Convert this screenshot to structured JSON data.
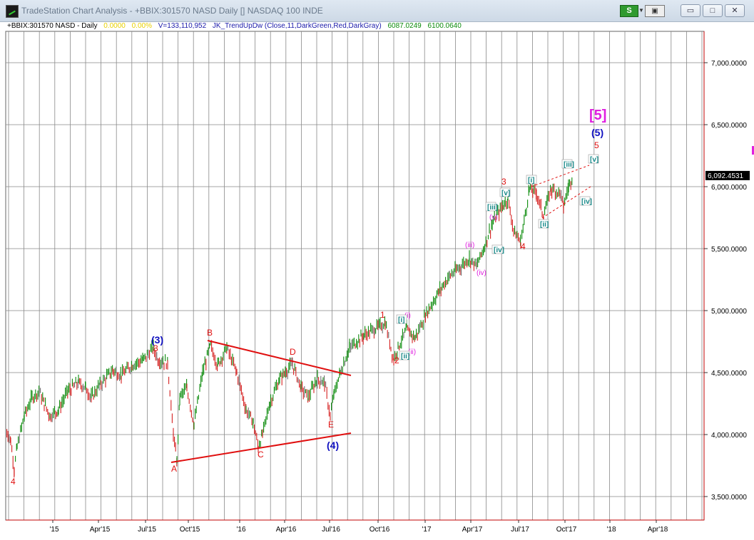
{
  "window": {
    "title": "TradeStation Chart Analysis - +BBIX:301570 NASD Daily [] NASDAQ 100 INDE",
    "s_button": "S",
    "link_button": "▣",
    "min_glyph": "▭",
    "max_glyph": "□",
    "close_glyph": "✕"
  },
  "info_bar": {
    "symbol": "+BBIX:301570 NASD - Daily",
    "change": "0.0000",
    "pct": "0.00%",
    "volume": "V=133,110,952",
    "indicator": "JK_TrendUpDw (Close,11,DarkGreen,Red,DarkGray)",
    "val1": "6087.0249",
    "val2": "6100.0640"
  },
  "colors": {
    "up": "#0a8a0a",
    "down": "#d62020",
    "flat": "#707070",
    "grid": "#888888",
    "axis": "#c00000",
    "wave_red": "#e01010",
    "wave_blue": "#1010c0",
    "wave_magenta": "#e020e0",
    "wave_teal": "#1a8a8a"
  },
  "y_axis": {
    "labels": [
      "7,000.0000",
      "6,500.0000",
      "6,000.0000",
      "5,500.0000",
      "5,000.0000",
      "4,500.0000",
      "4,000.0000",
      "3,500.0000"
    ],
    "current_price": "6,092.4531"
  },
  "x_axis": {
    "labels": [
      "'15",
      "Apr'15",
      "Jul'15",
      "Oct'15",
      "'16",
      "Apr'16",
      "Jul'16",
      "Oct'16",
      "'17",
      "Apr'17",
      "Jul'17",
      "Oct'17",
      "'18",
      "Apr'18"
    ]
  },
  "chart_data": {
    "type": "line",
    "series": [
      {
        "name": "",
        "values": []
      }
    ],
    "ylim": [
      3300,
      7200
    ],
    "trend_lines": [
      {
        "p1": [
          "Oct'15",
          4750
        ],
        "p2": [
          "Jul'16",
          4480
        ]
      },
      {
        "p1": [
          "Aug'15",
          3780
        ],
        "p2": [
          "Jul'16",
          4000
        ]
      }
    ]
  },
  "waves": {
    "red": [
      "4",
      "3",
      "A",
      "B",
      "C",
      "D",
      "E",
      "1",
      "2",
      "3",
      "4",
      "5"
    ],
    "blue": [
      "(3)",
      "(4)",
      "(5)"
    ],
    "magenta": [
      "[5]",
      "(i)",
      "(ii)",
      "(iii)",
      "(iv)",
      "(v)"
    ],
    "teal": [
      "[i]",
      "[ii]",
      "[iii]",
      "[iv]",
      "[v]",
      "[i]",
      "[ii]",
      "[iii]",
      "[iv]",
      "[v]"
    ]
  }
}
